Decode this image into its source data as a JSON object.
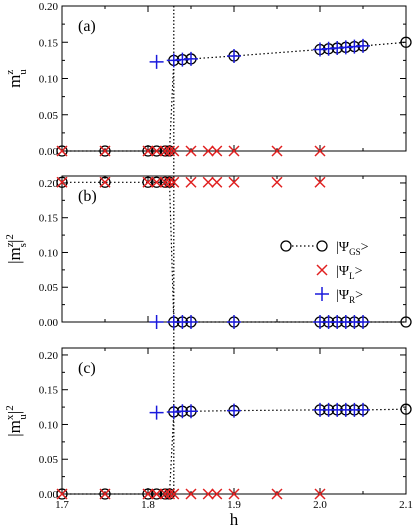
{
  "chart_data": [
    {
      "type": "scatter",
      "panel_tag": "(a)",
      "ylabel": {
        "base": "m",
        "sup": "z",
        "sub": "u"
      },
      "xlim": [
        1.7,
        2.1
      ],
      "ylim": [
        0.0,
        0.2
      ],
      "yticks": [
        "0.00",
        "0.05",
        "0.10",
        "0.15",
        "0.20"
      ],
      "yticks_values": [
        0.0,
        0.05,
        0.1,
        0.15,
        0.2
      ],
      "series": [
        {
          "marker": "circle",
          "line": "dotted",
          "x": [
            1.7,
            1.75,
            1.8,
            1.81,
            1.82,
            1.825,
            1.83,
            1.84,
            1.85,
            1.9,
            2.0,
            2.01,
            2.02,
            2.03,
            2.04,
            2.05,
            2.1
          ],
          "y": [
            0.0,
            0.0,
            0.0,
            0.0,
            0.0,
            0.0,
            0.125,
            0.126,
            0.127,
            0.131,
            0.14,
            0.141,
            0.142,
            0.143,
            0.144,
            0.145,
            0.15
          ]
        },
        {
          "marker": "x",
          "color": "#e02020",
          "x": [
            1.7,
            1.75,
            1.8,
            1.81,
            1.82,
            1.825,
            1.83,
            1.85,
            1.87,
            1.88,
            1.9,
            1.95,
            2.0
          ],
          "y": [
            0,
            0,
            0,
            0,
            0,
            0,
            0,
            0,
            0,
            0,
            0,
            0,
            0
          ]
        },
        {
          "marker": "plus",
          "color": "#1a1adc",
          "x": [
            1.81,
            1.83,
            1.84,
            1.85,
            1.9,
            2.0,
            2.01,
            2.02,
            2.03,
            2.04,
            2.05
          ],
          "y": [
            0.123,
            0.125,
            0.126,
            0.127,
            0.131,
            0.14,
            0.141,
            0.142,
            0.143,
            0.144,
            0.145
          ]
        }
      ],
      "vline_x": 1.83
    },
    {
      "type": "scatter",
      "panel_tag": "(b)",
      "ylabel": {
        "base": "|m",
        "sup": "z",
        "sub": "s",
        "tail": "|",
        "pow": "2"
      },
      "xlim": [
        1.7,
        2.1
      ],
      "ylim": [
        0.0,
        0.21
      ],
      "yticks": [
        "0.00",
        "0.05",
        "0.10",
        "0.15",
        "0.20"
      ],
      "yticks_values": [
        0.0,
        0.05,
        0.1,
        0.15,
        0.2
      ],
      "series": [
        {
          "marker": "circle",
          "line": "dotted",
          "x": [
            1.7,
            1.75,
            1.8,
            1.81,
            1.82,
            1.825,
            1.83,
            1.84,
            1.85,
            1.9,
            2.0,
            2.01,
            2.02,
            2.03,
            2.04,
            2.05,
            2.1
          ],
          "y": [
            0.201,
            0.201,
            0.201,
            0.201,
            0.201,
            0.201,
            0.0,
            0.0,
            0.0,
            0.0,
            0.0,
            0.0,
            0.0,
            0.0,
            0.0,
            0.0,
            0.0
          ]
        },
        {
          "marker": "x",
          "color": "#e02020",
          "x": [
            1.7,
            1.75,
            1.8,
            1.81,
            1.82,
            1.825,
            1.83,
            1.85,
            1.87,
            1.88,
            1.9,
            1.95,
            2.0
          ],
          "y": [
            0.201,
            0.201,
            0.201,
            0.201,
            0.201,
            0.201,
            0.201,
            0.201,
            0.201,
            0.201,
            0.201,
            0.201,
            0.201
          ]
        },
        {
          "marker": "plus",
          "color": "#1a1adc",
          "x": [
            1.81,
            1.83,
            1.84,
            1.85,
            1.9,
            2.0,
            2.01,
            2.02,
            2.03,
            2.04,
            2.05
          ],
          "y": [
            0,
            0,
            0,
            0,
            0,
            0,
            0,
            0,
            0,
            0,
            0
          ]
        }
      ],
      "vline_x": 1.83,
      "legend": [
        {
          "marker": "circle",
          "label": "|Ψ",
          "sub": "GS",
          "tail": ">"
        },
        {
          "marker": "x",
          "label": "|Ψ",
          "sub": "L",
          "tail": ">"
        },
        {
          "marker": "plus",
          "label": "|Ψ",
          "sub": "R",
          "tail": ">"
        }
      ]
    },
    {
      "type": "scatter",
      "panel_tag": "(c)",
      "ylabel": {
        "base": "|m",
        "sup": "x",
        "sub": "u",
        "tail": "|",
        "pow": "2"
      },
      "xlabel": "h",
      "xlim": [
        1.7,
        2.1
      ],
      "ylim": [
        0.0,
        0.21
      ],
      "yticks": [
        "0.00",
        "0.05",
        "0.10",
        "0.15",
        "0.20"
      ],
      "yticks_values": [
        0.0,
        0.05,
        0.1,
        0.15,
        0.2
      ],
      "xticks": [
        "1.7",
        "1.8",
        "1.9",
        "2.0",
        "2.1"
      ],
      "xticks_values": [
        1.7,
        1.8,
        1.9,
        2.0,
        2.1
      ],
      "series": [
        {
          "marker": "circle",
          "line": "dotted",
          "x": [
            1.7,
            1.75,
            1.8,
            1.81,
            1.82,
            1.825,
            1.83,
            1.84,
            1.85,
            1.9,
            2.0,
            2.01,
            2.02,
            2.03,
            2.04,
            2.05,
            2.1
          ],
          "y": [
            0.0,
            0.0,
            0.0,
            0.0,
            0.0,
            0.0,
            0.118,
            0.119,
            0.119,
            0.12,
            0.121,
            0.121,
            0.121,
            0.121,
            0.121,
            0.121,
            0.122
          ]
        },
        {
          "marker": "x",
          "color": "#e02020",
          "x": [
            1.7,
            1.75,
            1.8,
            1.81,
            1.82,
            1.825,
            1.83,
            1.85,
            1.87,
            1.88,
            1.9,
            1.95,
            2.0
          ],
          "y": [
            0,
            0,
            0,
            0,
            0,
            0,
            0,
            0,
            0,
            0,
            0,
            0,
            0
          ]
        },
        {
          "marker": "plus",
          "color": "#1a1adc",
          "x": [
            1.81,
            1.83,
            1.84,
            1.85,
            1.9,
            2.0,
            2.01,
            2.02,
            2.03,
            2.04,
            2.05
          ],
          "y": [
            0.117,
            0.118,
            0.119,
            0.119,
            0.12,
            0.121,
            0.121,
            0.121,
            0.121,
            0.121,
            0.121
          ]
        }
      ],
      "vline_x": 1.83
    }
  ],
  "colors": {
    "gs": "#000000",
    "left": "#e02020",
    "right": "#1a1adc"
  }
}
